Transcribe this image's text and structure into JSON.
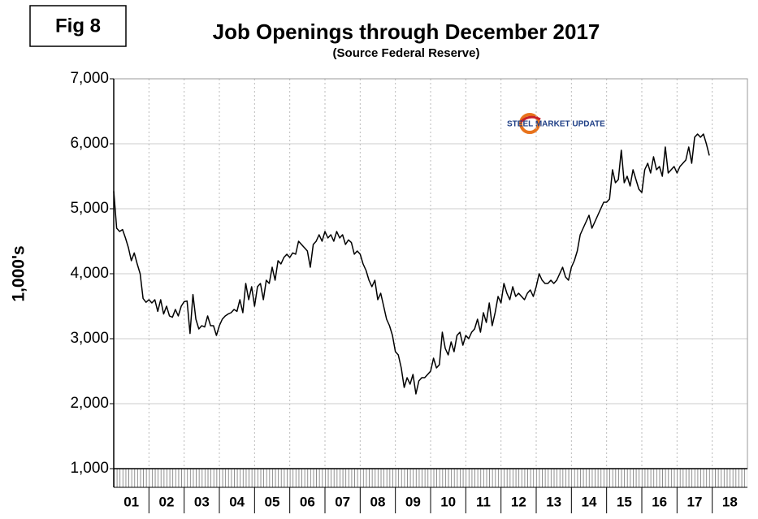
{
  "chart_data": {
    "type": "line",
    "fig_label": "Fig 8",
    "title": "Job Openings through December 2017",
    "subtitle": "(Source Federal Reserve)",
    "y_label": "1,000's",
    "annotation": "STEEL MARKET UPDATE",
    "color": "#000000",
    "grid": true,
    "xlim": [
      2001,
      2019
    ],
    "xgrid": [
      2002,
      2003,
      2004,
      2005,
      2006,
      2007,
      2008,
      2009,
      2010,
      2011,
      2012,
      2013,
      2014,
      2015,
      2016,
      2017,
      2018
    ],
    "xticks": [
      {
        "value": 2001.5,
        "label": "01"
      },
      {
        "value": 2002.5,
        "label": "02"
      },
      {
        "value": 2003.5,
        "label": "03"
      },
      {
        "value": 2004.5,
        "label": "04"
      },
      {
        "value": 2005.5,
        "label": "05"
      },
      {
        "value": 2006.5,
        "label": "06"
      },
      {
        "value": 2007.5,
        "label": "07"
      },
      {
        "value": 2008.5,
        "label": "08"
      },
      {
        "value": 2009.5,
        "label": "09"
      },
      {
        "value": 2010.5,
        "label": "10"
      },
      {
        "value": 2011.5,
        "label": "11"
      },
      {
        "value": 2012.5,
        "label": "12"
      },
      {
        "value": 2013.5,
        "label": "13"
      },
      {
        "value": 2014.5,
        "label": "14"
      },
      {
        "value": 2015.5,
        "label": "15"
      },
      {
        "value": 2016.5,
        "label": "16"
      },
      {
        "value": 2017.5,
        "label": "17"
      },
      {
        "value": 2018.5,
        "label": "18"
      }
    ],
    "ylim": [
      1000,
      7000
    ],
    "yticks": [
      {
        "value": 1000,
        "label": "1,000"
      },
      {
        "value": 2000,
        "label": "2,000"
      },
      {
        "value": 3000,
        "label": "3,000"
      },
      {
        "value": 4000,
        "label": "4,000"
      },
      {
        "value": 5000,
        "label": "5,000"
      },
      {
        "value": 6000,
        "label": "6,000"
      },
      {
        "value": 7000,
        "label": "7,000"
      }
    ],
    "x": [
      2001,
      2001.083,
      2001.167,
      2001.25,
      2001.333,
      2001.417,
      2001.5,
      2001.583,
      2001.667,
      2001.75,
      2001.833,
      2001.917,
      2002,
      2002.083,
      2002.167,
      2002.25,
      2002.333,
      2002.417,
      2002.5,
      2002.583,
      2002.667,
      2002.75,
      2002.833,
      2002.917,
      2003,
      2003.083,
      2003.167,
      2003.25,
      2003.333,
      2003.417,
      2003.5,
      2003.583,
      2003.667,
      2003.75,
      2003.833,
      2003.917,
      2004,
      2004.083,
      2004.167,
      2004.25,
      2004.333,
      2004.417,
      2004.5,
      2004.583,
      2004.667,
      2004.75,
      2004.833,
      2004.917,
      2005,
      2005.083,
      2005.167,
      2005.25,
      2005.333,
      2005.417,
      2005.5,
      2005.583,
      2005.667,
      2005.75,
      2005.833,
      2005.917,
      2006,
      2006.083,
      2006.167,
      2006.25,
      2006.333,
      2006.417,
      2006.5,
      2006.583,
      2006.667,
      2006.75,
      2006.833,
      2006.917,
      2007,
      2007.083,
      2007.167,
      2007.25,
      2007.333,
      2007.417,
      2007.5,
      2007.583,
      2007.667,
      2007.75,
      2007.833,
      2007.917,
      2008,
      2008.083,
      2008.167,
      2008.25,
      2008.333,
      2008.417,
      2008.5,
      2008.583,
      2008.667,
      2008.75,
      2008.833,
      2008.917,
      2009,
      2009.083,
      2009.167,
      2009.25,
      2009.333,
      2009.417,
      2009.5,
      2009.583,
      2009.667,
      2009.75,
      2009.833,
      2009.917,
      2010,
      2010.083,
      2010.167,
      2010.25,
      2010.333,
      2010.417,
      2010.5,
      2010.583,
      2010.667,
      2010.75,
      2010.833,
      2010.917,
      2011,
      2011.083,
      2011.167,
      2011.25,
      2011.333,
      2011.417,
      2011.5,
      2011.583,
      2011.667,
      2011.75,
      2011.833,
      2011.917,
      2012,
      2012.083,
      2012.167,
      2012.25,
      2012.333,
      2012.417,
      2012.5,
      2012.583,
      2012.667,
      2012.75,
      2012.833,
      2012.917,
      2013,
      2013.083,
      2013.167,
      2013.25,
      2013.333,
      2013.417,
      2013.5,
      2013.583,
      2013.667,
      2013.75,
      2013.833,
      2013.917,
      2014,
      2014.083,
      2014.167,
      2014.25,
      2014.333,
      2014.417,
      2014.5,
      2014.583,
      2014.667,
      2014.75,
      2014.833,
      2014.917,
      2015,
      2015.083,
      2015.167,
      2015.25,
      2015.333,
      2015.417,
      2015.5,
      2015.583,
      2015.667,
      2015.75,
      2015.833,
      2015.917,
      2016,
      2016.083,
      2016.167,
      2016.25,
      2016.333,
      2016.417,
      2016.5,
      2016.583,
      2016.667,
      2016.75,
      2016.833,
      2016.917,
      2017,
      2017.083,
      2017.167,
      2017.25,
      2017.333,
      2017.417,
      2017.5,
      2017.583,
      2017.667,
      2017.75,
      2017.833,
      2017.917
    ],
    "values": [
      5270,
      4700,
      4650,
      4680,
      4550,
      4400,
      4200,
      4320,
      4150,
      4000,
      3620,
      3560,
      3600,
      3550,
      3600,
      3420,
      3600,
      3380,
      3500,
      3350,
      3330,
      3450,
      3350,
      3500,
      3570,
      3580,
      3080,
      3680,
      3300,
      3150,
      3200,
      3180,
      3350,
      3200,
      3200,
      3050,
      3200,
      3300,
      3350,
      3380,
      3400,
      3450,
      3420,
      3600,
      3400,
      3850,
      3600,
      3800,
      3500,
      3800,
      3850,
      3600,
      3900,
      3850,
      4100,
      3900,
      4200,
      4150,
      4250,
      4300,
      4250,
      4320,
      4300,
      4500,
      4450,
      4400,
      4350,
      4100,
      4450,
      4500,
      4600,
      4500,
      4650,
      4550,
      4600,
      4500,
      4650,
      4550,
      4600,
      4450,
      4520,
      4480,
      4300,
      4350,
      4300,
      4150,
      4050,
      3900,
      3800,
      3900,
      3600,
      3700,
      3500,
      3300,
      3200,
      3050,
      2800,
      2750,
      2550,
      2250,
      2400,
      2300,
      2450,
      2150,
      2350,
      2400,
      2400,
      2450,
      2500,
      2700,
      2550,
      2600,
      3100,
      2850,
      2750,
      2950,
      2800,
      3050,
      3100,
      2900,
      3050,
      3000,
      3100,
      3150,
      3300,
      3100,
      3400,
      3250,
      3550,
      3200,
      3400,
      3650,
      3550,
      3850,
      3700,
      3600,
      3800,
      3650,
      3700,
      3650,
      3600,
      3700,
      3750,
      3650,
      3800,
      4000,
      3900,
      3850,
      3850,
      3900,
      3850,
      3900,
      4000,
      4100,
      3950,
      3900,
      4100,
      4200,
      4350,
      4600,
      4700,
      4800,
      4900,
      4700,
      4800,
      4900,
      5000,
      5100,
      5100,
      5150,
      5600,
      5400,
      5450,
      5900,
      5400,
      5500,
      5350,
      5600,
      5450,
      5300,
      5250,
      5600,
      5700,
      5550,
      5800,
      5600,
      5650,
      5500,
      5950,
      5550,
      5600,
      5650,
      5550,
      5650,
      5700,
      5750,
      5950,
      5700,
      6100,
      6150,
      6100,
      6150,
      6000,
      5820
    ]
  }
}
